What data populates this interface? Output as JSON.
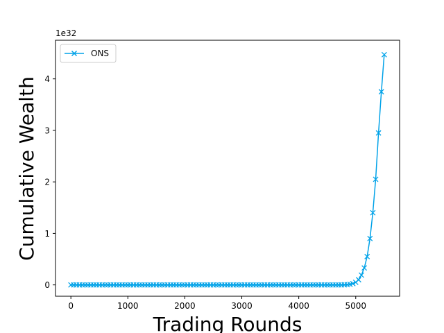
{
  "chart_data": {
    "type": "line",
    "xlabel": "Trading Rounds",
    "ylabel": "Cumulative Wealth",
    "y_offset_label": "1e32",
    "xlim": [
      -270,
      5770
    ],
    "ylim": [
      -0.22,
      4.75
    ],
    "x_ticks": [
      0,
      1000,
      2000,
      3000,
      4000,
      5000
    ],
    "y_ticks": [
      0,
      1,
      2,
      3,
      4
    ],
    "x_tick_labels": [
      "0",
      "1000",
      "2000",
      "3000",
      "4000",
      "5000"
    ],
    "y_tick_labels": [
      "0",
      "1",
      "2",
      "3",
      "4"
    ],
    "grid": false,
    "legend_position": "top-left",
    "series": [
      {
        "name": "ONS",
        "color": "#00a2e8",
        "marker": "x",
        "x": [
          0,
          50,
          100,
          150,
          200,
          250,
          300,
          350,
          400,
          450,
          500,
          550,
          600,
          650,
          700,
          750,
          800,
          850,
          900,
          950,
          1000,
          1050,
          1100,
          1150,
          1200,
          1250,
          1300,
          1350,
          1400,
          1450,
          1500,
          1550,
          1600,
          1650,
          1700,
          1750,
          1800,
          1850,
          1900,
          1950,
          2000,
          2050,
          2100,
          2150,
          2200,
          2250,
          2300,
          2350,
          2400,
          2450,
          2500,
          2550,
          2600,
          2650,
          2700,
          2750,
          2800,
          2850,
          2900,
          2950,
          3000,
          3050,
          3100,
          3150,
          3200,
          3250,
          3300,
          3350,
          3400,
          3450,
          3500,
          3550,
          3600,
          3650,
          3700,
          3750,
          3800,
          3850,
          3900,
          3950,
          4000,
          4050,
          4100,
          4150,
          4200,
          4250,
          4300,
          4350,
          4400,
          4450,
          4500,
          4550,
          4600,
          4650,
          4700,
          4750,
          4800,
          4850,
          4900,
          4950,
          5000,
          5050,
          5100,
          5150,
          5200,
          5250,
          5300,
          5350,
          5400,
          5450,
          5500
        ],
        "y": [
          0,
          0,
          0,
          0,
          0,
          0,
          0,
          0,
          0,
          0,
          0,
          0,
          0,
          0,
          0,
          0,
          0,
          0,
          0,
          0,
          0,
          0,
          0,
          0,
          0,
          0,
          0,
          0,
          0,
          0,
          0,
          0,
          0,
          0,
          0,
          0,
          0,
          0,
          0,
          0,
          0,
          0,
          0,
          0,
          0,
          0,
          0,
          0,
          0,
          0,
          0,
          0,
          0,
          0,
          0,
          0,
          0,
          0,
          0,
          0,
          0,
          0,
          0,
          0,
          0,
          0,
          0,
          0,
          0,
          0,
          0,
          0,
          0,
          0,
          0,
          0,
          0,
          0,
          0,
          0,
          0,
          0,
          0,
          0,
          0,
          0,
          0,
          0,
          0,
          0,
          0,
          0,
          0,
          0,
          0,
          0,
          0.002,
          0.005,
          0.012,
          0.025,
          0.05,
          0.1,
          0.19,
          0.33,
          0.55,
          0.9,
          1.4,
          2.05,
          2.95,
          3.75,
          4.47
        ]
      }
    ]
  }
}
